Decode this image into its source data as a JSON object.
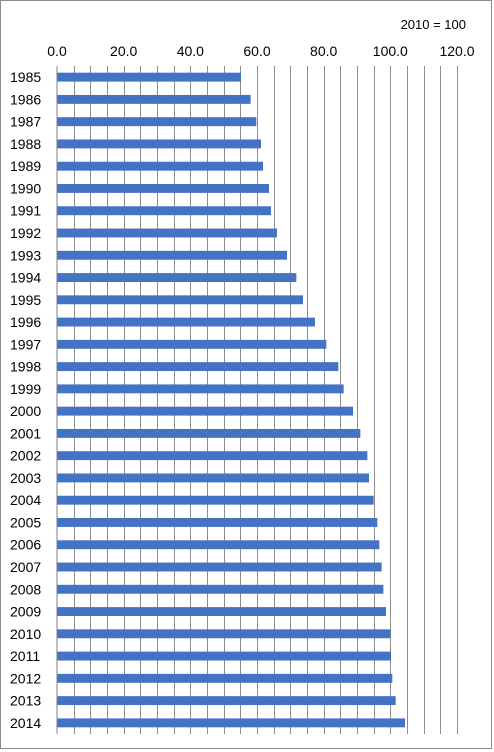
{
  "chart_data": {
    "type": "bar",
    "orientation": "horizontal",
    "note": "2010 = 100",
    "title": "",
    "xlabel": "",
    "ylabel": "",
    "xlim": [
      0,
      120
    ],
    "xticks": [
      "0.0",
      "20.0",
      "40.0",
      "60.0",
      "80.0",
      "100.0",
      "120.0"
    ],
    "minor_grid_step": 5,
    "grid": true,
    "bar_color": "#4472c4",
    "categories": [
      "1985",
      "1986",
      "1987",
      "1988",
      "1989",
      "1990",
      "1991",
      "1992",
      "1993",
      "1994",
      "1995",
      "1996",
      "1997",
      "1998",
      "1999",
      "2000",
      "2001",
      "2002",
      "2003",
      "2004",
      "2005",
      "2006",
      "2007",
      "2008",
      "2009",
      "2010",
      "2011",
      "2012",
      "2013",
      "2014"
    ],
    "values": [
      55.2,
      58.1,
      59.8,
      61.2,
      61.8,
      63.6,
      64.2,
      66.0,
      69.0,
      71.8,
      73.8,
      77.4,
      80.8,
      84.4,
      86.0,
      88.8,
      91.0,
      93.1,
      93.6,
      95.0,
      96.1,
      96.7,
      97.4,
      97.9,
      98.7,
      100.0,
      100.2,
      100.6,
      101.6,
      104.4
    ]
  }
}
